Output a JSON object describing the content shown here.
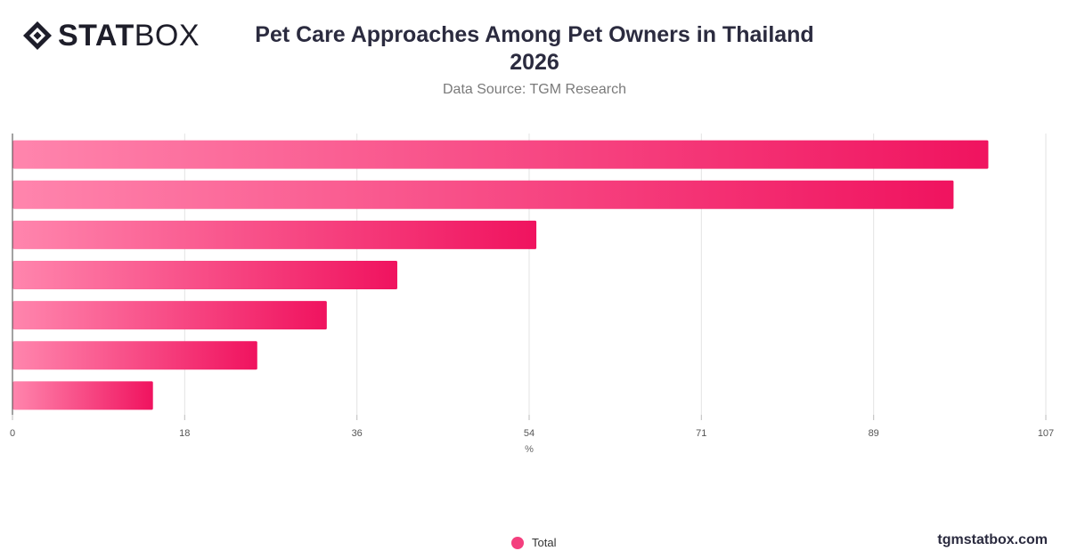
{
  "header": {
    "logo_bold": "STAT",
    "logo_light": "BOX",
    "title_line1": "Pet Care Approaches Among Pet Owners in Thailand",
    "title_line2": "2026",
    "subtitle": "Data Source: TGM Research"
  },
  "footer": {
    "legend_label": "Total",
    "brand": "tgmstatbox.com"
  },
  "colors": {
    "bar_start": "#ff85ad",
    "bar_end": "#f0135f",
    "grid": "#e3e3e3",
    "axis": "#444444"
  },
  "chart_data": {
    "type": "bar",
    "orientation": "horizontal",
    "categories": [
      "",
      "",
      "",
      "",
      "",
      "",
      ""
    ],
    "series": [
      {
        "name": "Total",
        "values": [
          101,
          97.4,
          54.2,
          39.8,
          32.5,
          25.3,
          14.5
        ]
      }
    ],
    "xlabel": "%",
    "xlim": [
      0,
      107
    ],
    "xticks": [
      "0",
      "18",
      "36",
      "54",
      "71",
      "89",
      "107"
    ],
    "xtick_values": [
      0,
      17.83,
      35.67,
      53.5,
      71.33,
      89.17,
      107
    ],
    "grid": true,
    "legend": "bottom-center"
  }
}
